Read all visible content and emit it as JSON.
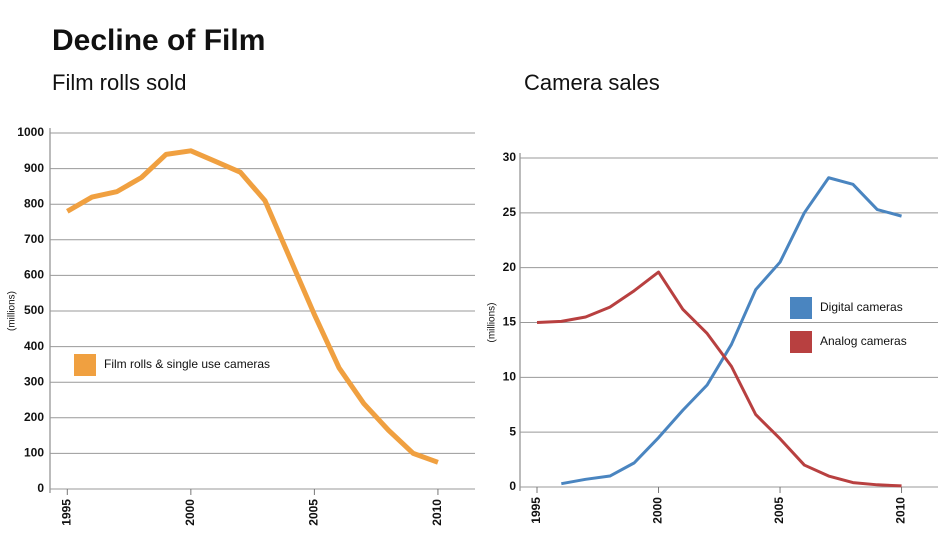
{
  "title": "Decline of Film",
  "chart_data": [
    {
      "type": "line",
      "title": "Film rolls sold",
      "y_label": "(millions)",
      "x": [
        1995,
        1996,
        1997,
        1998,
        1999,
        2000,
        2001,
        2002,
        2003,
        2004,
        2005,
        2006,
        2007,
        2008,
        2009,
        2010
      ],
      "series": [
        {
          "name": "Film rolls & single use cameras",
          "color": "#f0a040",
          "values": [
            780,
            820,
            835,
            875,
            940,
            950,
            920,
            890,
            810,
            650,
            490,
            340,
            240,
            165,
            100,
            75
          ]
        }
      ],
      "xlim": [
        1994.3,
        2011.5
      ],
      "ylim": [
        0,
        1000
      ],
      "xticks": [
        1995,
        2000,
        2005,
        2010
      ],
      "yticks": [
        0,
        100,
        200,
        300,
        400,
        500,
        600,
        700,
        800,
        900,
        1000
      ],
      "grid": true,
      "legend": "center-left"
    },
    {
      "type": "line",
      "title": "Camera sales",
      "y_label": "(millions)",
      "x": [
        1995,
        1996,
        1997,
        1998,
        1999,
        2000,
        2001,
        2002,
        2003,
        2004,
        2005,
        2006,
        2007,
        2008,
        2009,
        2010
      ],
      "series": [
        {
          "name": "Digital cameras",
          "color": "#4a85c0",
          "values": [
            null,
            0.3,
            0.7,
            1.0,
            2.2,
            4.5,
            7.0,
            9.3,
            13,
            18,
            20.5,
            25,
            28.2,
            27.6,
            25.3,
            24.7
          ]
        },
        {
          "name": "Analog cameras",
          "color": "#b84040",
          "values": [
            15,
            15.1,
            15.5,
            16.4,
            17.9,
            19.6,
            16.2,
            14,
            11,
            6.6,
            4.4,
            2,
            1,
            0.4,
            0.2,
            0.1
          ]
        }
      ],
      "xlim": [
        1994.3,
        2011.5
      ],
      "ylim": [
        0,
        30
      ],
      "xticks": [
        1995,
        2000,
        2005,
        2010
      ],
      "yticks": [
        0,
        5,
        10,
        15,
        20,
        25,
        30
      ],
      "grid": true,
      "legend": "center-right"
    }
  ]
}
